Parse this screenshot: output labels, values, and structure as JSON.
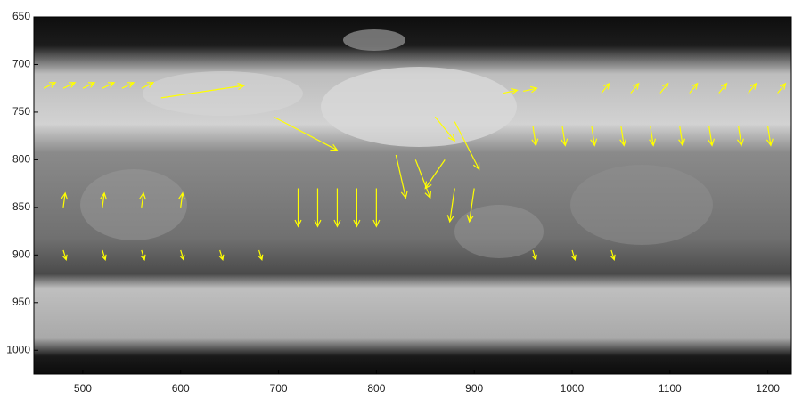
{
  "chart_data": {
    "type": "quiver",
    "color": "#ffff00",
    "xlim": [
      450,
      1224
    ],
    "ylim": [
      1025,
      650
    ],
    "y_reversed": true,
    "xticks": [
      500,
      600,
      700,
      800,
      900,
      1000,
      1100,
      1200
    ],
    "yticks": [
      650,
      700,
      750,
      800,
      850,
      900,
      950,
      1000
    ],
    "x": [
      460,
      480,
      500,
      520,
      540,
      560,
      580,
      695,
      860,
      880,
      820,
      840,
      870,
      930,
      950,
      1030,
      1060,
      1090,
      1120,
      1150,
      1180,
      1210,
      960,
      990,
      1020,
      1050,
      1080,
      1110,
      1140,
      1170,
      1200,
      720,
      740,
      760,
      780,
      800,
      880,
      900,
      480,
      520,
      560,
      600,
      640,
      680,
      960,
      1000,
      1040,
      480,
      520,
      560,
      600
    ],
    "y": [
      725,
      725,
      725,
      725,
      725,
      725,
      735,
      755,
      755,
      760,
      795,
      800,
      800,
      730,
      728,
      730,
      730,
      730,
      730,
      730,
      730,
      730,
      765,
      765,
      765,
      765,
      765,
      765,
      765,
      765,
      765,
      830,
      830,
      830,
      830,
      830,
      830,
      830,
      895,
      895,
      895,
      895,
      895,
      895,
      895,
      895,
      895,
      850,
      850,
      850,
      850
    ],
    "u": [
      12,
      12,
      12,
      12,
      12,
      12,
      85,
      65,
      20,
      25,
      10,
      15,
      -20,
      14,
      14,
      8,
      8,
      8,
      8,
      8,
      8,
      8,
      3,
      3,
      3,
      3,
      3,
      3,
      3,
      3,
      3,
      0,
      0,
      0,
      0,
      0,
      -5,
      -5,
      3,
      3,
      3,
      3,
      3,
      3,
      3,
      3,
      3,
      2,
      2,
      2,
      2
    ],
    "v": [
      -6,
      -6,
      -6,
      -6,
      -6,
      -6,
      -13,
      35,
      25,
      50,
      45,
      40,
      30,
      -3,
      -3,
      -10,
      -10,
      -10,
      -10,
      -10,
      -10,
      -10,
      20,
      20,
      20,
      20,
      20,
      20,
      20,
      20,
      20,
      40,
      40,
      40,
      40,
      40,
      35,
      35,
      10,
      10,
      10,
      10,
      10,
      10,
      10,
      10,
      10,
      -15,
      -15,
      -15,
      -15
    ]
  }
}
